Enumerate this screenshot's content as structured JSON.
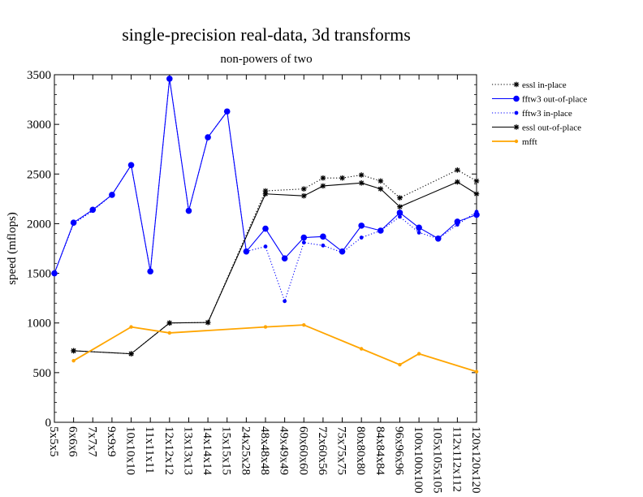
{
  "chart_data": {
    "type": "line",
    "title": "single-precision real-data, 3d transforms",
    "subtitle": "non-powers of two",
    "xlabel": "",
    "ylabel": "speed (mflops)",
    "ylim": [
      0,
      3500
    ],
    "yticks": [
      0,
      500,
      1000,
      1500,
      2000,
      2500,
      3000,
      3500
    ],
    "categories": [
      "5x5x5",
      "6x6x6",
      "7x7x7",
      "9x9x9",
      "10x10x10",
      "11x11x11",
      "12x12x12",
      "13x13x13",
      "14x14x14",
      "15x15x15",
      "24x25x28",
      "48x48x48",
      "49x49x49",
      "60x60x60",
      "72x60x56",
      "75x75x75",
      "80x80x80",
      "84x84x84",
      "96x96x96",
      "100x100x100",
      "105x105x105",
      "112x112x112",
      "120x120x120"
    ],
    "legend_position": "top-right",
    "series": [
      {
        "name": "essl in-place",
        "color": "#000000",
        "dash": "dotted",
        "marker": "star",
        "values": [
          null,
          720,
          null,
          null,
          690,
          null,
          1000,
          null,
          1005,
          null,
          null,
          2330,
          null,
          2350,
          2460,
          2460,
          2490,
          2430,
          2260,
          null,
          null,
          2540,
          2430
        ]
      },
      {
        "name": "fftw3 out-of-place",
        "color": "#0000ff",
        "dash": "solid",
        "marker": "circle-large",
        "values": [
          1500,
          2010,
          2140,
          2290,
          2590,
          1520,
          3460,
          2130,
          2870,
          3130,
          1720,
          1950,
          1650,
          1860,
          1870,
          1720,
          1980,
          1930,
          2110,
          1960,
          1850,
          2020,
          2090
        ]
      },
      {
        "name": "fftw3 in-place",
        "color": "#0000ff",
        "dash": "dotted",
        "marker": "circle-small",
        "values": [
          1500,
          2000,
          2130,
          2290,
          2590,
          1520,
          3460,
          2130,
          2870,
          3130,
          1720,
          1770,
          1220,
          1810,
          1780,
          1710,
          1860,
          1930,
          2070,
          1910,
          1850,
          1990,
          2120
        ]
      },
      {
        "name": "essl out-of-place",
        "color": "#000000",
        "dash": "solid",
        "marker": "star",
        "values": [
          null,
          720,
          null,
          null,
          690,
          null,
          1000,
          null,
          1005,
          null,
          null,
          2300,
          null,
          2280,
          2380,
          null,
          2410,
          2350,
          2170,
          null,
          null,
          2420,
          2300
        ]
      },
      {
        "name": "mfft",
        "color": "#ffa500",
        "dash": "solid",
        "marker": "dot",
        "values": [
          null,
          620,
          null,
          null,
          960,
          null,
          900,
          null,
          null,
          null,
          null,
          960,
          null,
          980,
          null,
          null,
          740,
          null,
          580,
          690,
          null,
          null,
          510
        ]
      }
    ]
  }
}
